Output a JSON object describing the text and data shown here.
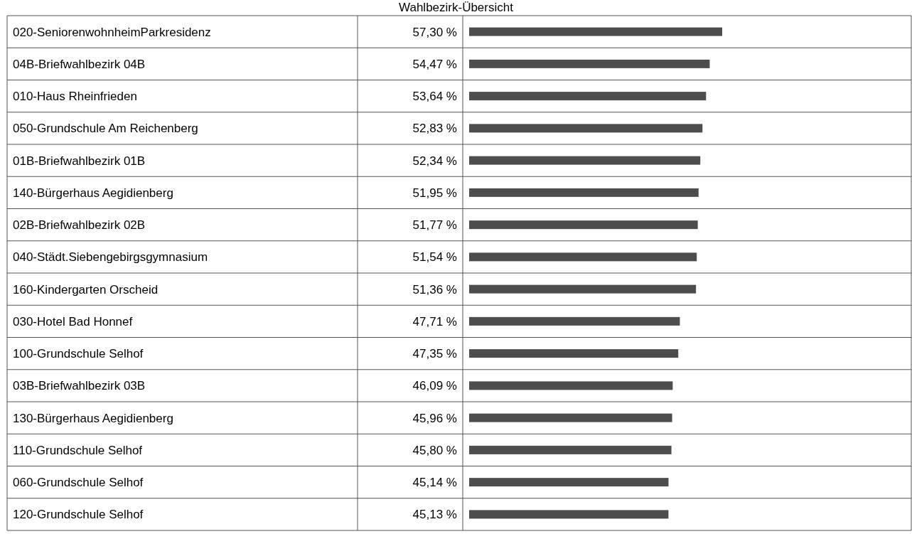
{
  "chart_data": {
    "type": "bar",
    "orientation": "horizontal",
    "title": "Wahlbezirk-Übersicht",
    "categories": [
      "020-SeniorenwohnheimParkresidenz",
      "04B-Briefwahlbezirk 04B",
      "010-Haus Rheinfrieden",
      "050-Grundschule Am Reichenberg",
      "01B-Briefwahlbezirk 01B",
      "140-Bürgerhaus Aegidienberg",
      "02B-Briefwahlbezirk 02B",
      "040-Städt.Siebengebirgsgymnasium",
      "160-Kindergarten Orscheid",
      "030-Hotel Bad Honnef",
      "100-Grundschule Selhof",
      "03B-Briefwahlbezirk 03B",
      "130-Bürgerhaus Aegidienberg",
      "110-Grundschule Selhof",
      "060-Grundschule Selhof",
      "120-Grundschule Selhof"
    ],
    "values": [
      57.3,
      54.47,
      53.64,
      52.83,
      52.34,
      51.95,
      51.77,
      51.54,
      51.36,
      47.71,
      47.35,
      46.09,
      45.96,
      45.8,
      45.14,
      45.13
    ],
    "value_labels": [
      "57,30 %",
      "54,47 %",
      "53,64 %",
      "52,83 %",
      "52,34 %",
      "51,95 %",
      "51,77 %",
      "51,54 %",
      "51,36 %",
      "47,71 %",
      "47,35 %",
      "46,09 %",
      "45,96 %",
      "45,80 %",
      "45,14 %",
      "45,13 %"
    ],
    "color": "#4d4d4d"
  }
}
